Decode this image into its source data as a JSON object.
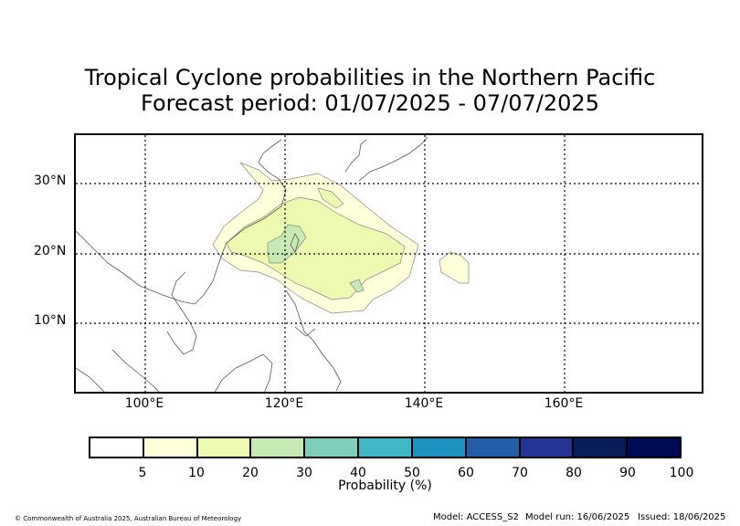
{
  "title_line1": "Tropical Cyclone probabilities in the Northern Pacific",
  "title_line2": "Forecast period: 01/07/2025 - 07/07/2025",
  "y_labels": [
    "30°N",
    "20°N",
    "10°N"
  ],
  "x_labels": [
    "100°E",
    "120°E",
    "140°E",
    "160°E"
  ],
  "colorbar": {
    "colors": [
      "#ffffff",
      "#ffffd9",
      "#edf8b1",
      "#c7e9b4",
      "#7fcdbb",
      "#41b6c4",
      "#1d91c0",
      "#225ea8",
      "#253494",
      "#081d58",
      "#000b55"
    ],
    "ticks": [
      "5",
      "10",
      "20",
      "30",
      "40",
      "50",
      "60",
      "70",
      "80",
      "90",
      "100"
    ],
    "label": "Probability (%)"
  },
  "footer": {
    "copyright": "© Commonwealth of Australia 2025, Australian Bureau of Meteorology",
    "model": "Model: ACCESS_S2",
    "model_run": "Model run: 16/06/2025",
    "issued": "Issued: 18/06/2025"
  }
}
